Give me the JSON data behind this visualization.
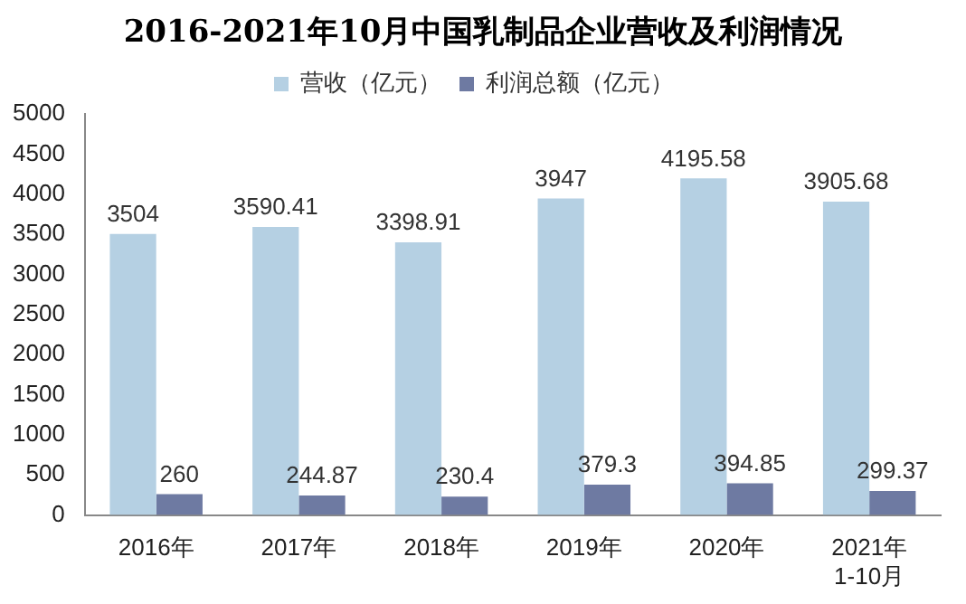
{
  "chart_data": {
    "type": "bar",
    "title": "2016-2021年10月中国乳制品企业营收及利润情况",
    "categories": [
      "2016年",
      "2017年",
      "2018年",
      "2019年",
      "2020年",
      "2021年\n1-10月"
    ],
    "series": [
      {
        "name": "营收（亿元）",
        "color": "#b5d0e3",
        "values": [
          3504,
          3590.41,
          3398.91,
          3947,
          4195.58,
          3905.68
        ]
      },
      {
        "name": "利润总额（亿元）",
        "color": "#6e7aa2",
        "values": [
          260,
          244.87,
          230.4,
          379.3,
          394.85,
          299.37
        ]
      }
    ],
    "ylim": [
      0,
      5000
    ],
    "yticks": [
      0,
      500,
      1000,
      1500,
      2000,
      2500,
      3000,
      3500,
      4000,
      4500,
      5000
    ],
    "grid": false,
    "legend": "top",
    "data_labels": true
  }
}
